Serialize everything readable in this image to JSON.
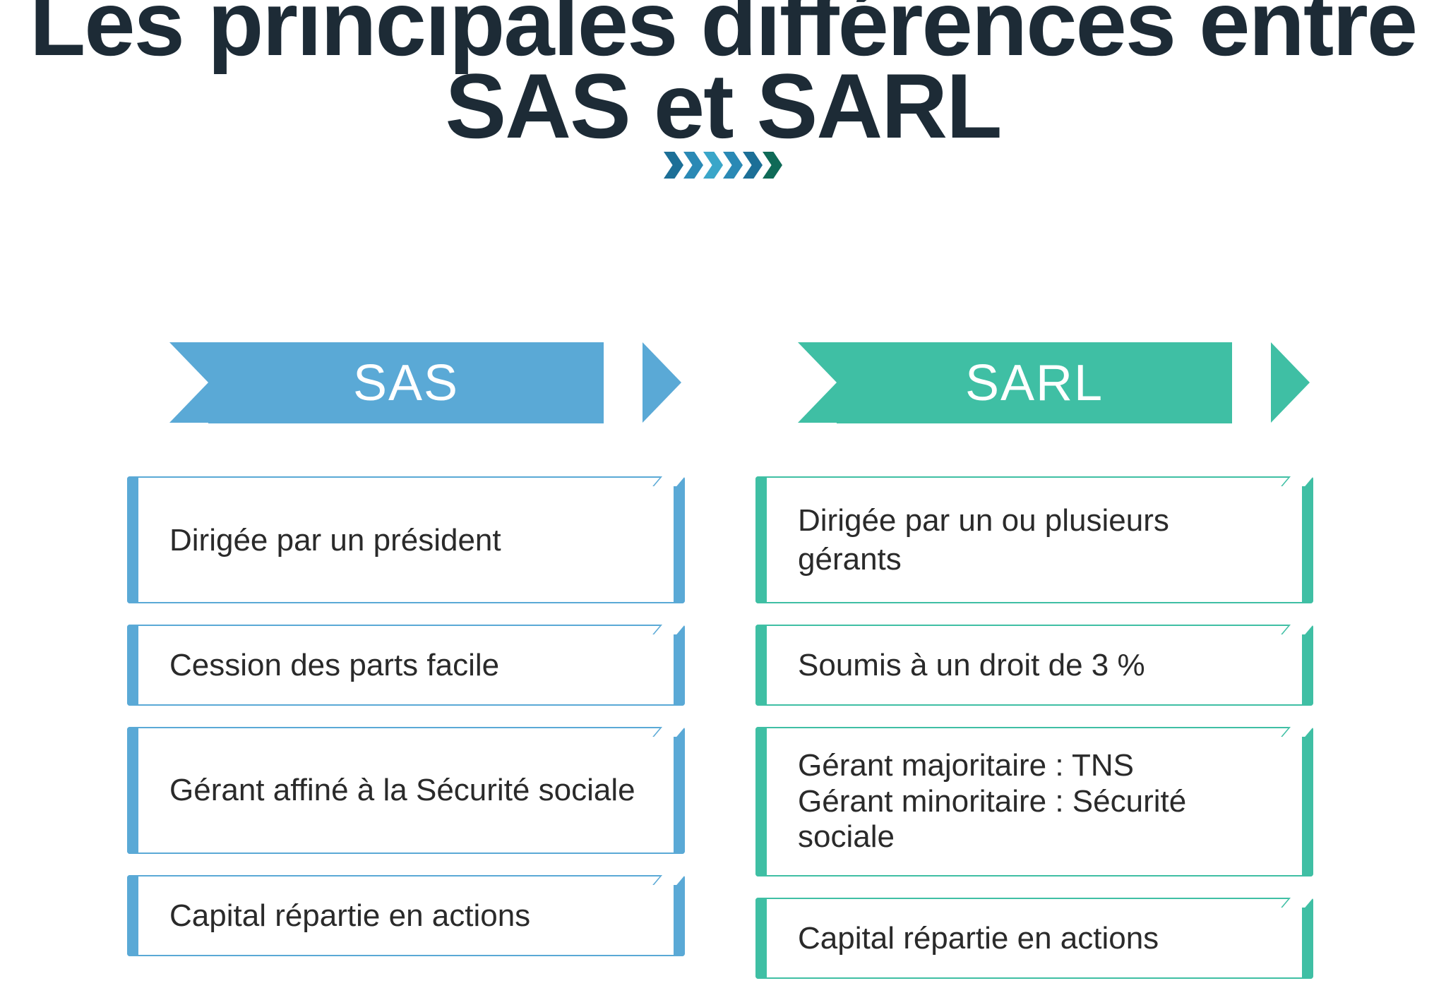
{
  "title_line1": "Les principales différences entre",
  "title_line2": "SAS et SARL",
  "divider": {
    "chevron_count": 6,
    "colors": [
      "#1c6f97",
      "#2a89b5",
      "#3aa6c9",
      "#2a89b5",
      "#1c6f97",
      "#0f6a57"
    ],
    "chevron_width": 28,
    "chevron_height": 38
  },
  "columns": [
    {
      "key": "sas",
      "label": "SAS",
      "color": "#5aa9d6",
      "boxes": [
        {
          "text": "Dirigée par un président",
          "height": "tall"
        },
        {
          "text": "Cession des parts facile",
          "height": "short"
        },
        {
          "text": "Gérant affiné à la Sécurité sociale",
          "height": "tall",
          "tight": true
        },
        {
          "text": "Capital répartie en actions",
          "height": "short"
        }
      ]
    },
    {
      "key": "sarl",
      "label": "SARL",
      "color": "#3fbfa4",
      "boxes": [
        {
          "text": "Dirigée par un ou plusieurs gérants",
          "height": "tall"
        },
        {
          "text": "Soumis à un droit de 3 %",
          "height": "short"
        },
        {
          "text": "Gérant majoritaire : TNS\nGérant minoritaire : Sécurité sociale",
          "height": "tall",
          "tight": true
        },
        {
          "text": "Capital répartie en actions",
          "height": "short"
        }
      ]
    }
  ],
  "typography": {
    "title_fontsize": 130,
    "title_color": "#1d2b36",
    "banner_fontsize": 72,
    "banner_text_color": "#ffffff",
    "box_fontsize": 44,
    "box_text_color": "#2a2a2a"
  },
  "background_color": "#ffffff"
}
